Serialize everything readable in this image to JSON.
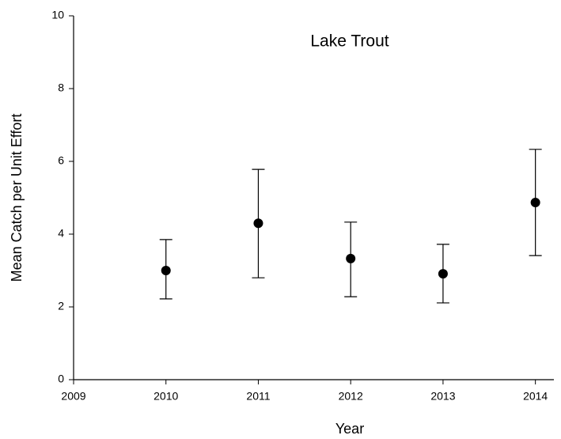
{
  "chart_data": {
    "type": "errorbar",
    "title": "Lake Trout",
    "x_label": "Year",
    "y_label": "Mean Catch per Unit Effort",
    "x": [
      2010,
      2011,
      2012,
      2013,
      2014
    ],
    "values": [
      3.0,
      4.3,
      3.33,
      2.91,
      4.87
    ],
    "upper": [
      3.85,
      5.78,
      4.33,
      3.72,
      6.33
    ],
    "lower": [
      2.22,
      2.8,
      2.28,
      2.11,
      3.41
    ],
    "color": "#000000",
    "xlim": [
      2009,
      2014.2
    ],
    "xticks": [
      2009,
      2010,
      2011,
      2012,
      2013,
      2014
    ],
    "ylim": [
      0,
      10
    ],
    "yticks": [
      0,
      2,
      4,
      6,
      8,
      10
    ]
  }
}
